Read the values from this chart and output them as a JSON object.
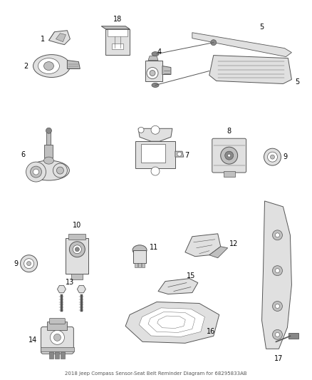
{
  "title": "2018 Jeep Compass Sensor-Seat Belt Reminder Diagram for 68295833AB",
  "bg": "#ffffff",
  "line_color": "#555555",
  "light_fill": "#e0e0e0",
  "mid_fill": "#c0c0c0",
  "dark_fill": "#888888"
}
